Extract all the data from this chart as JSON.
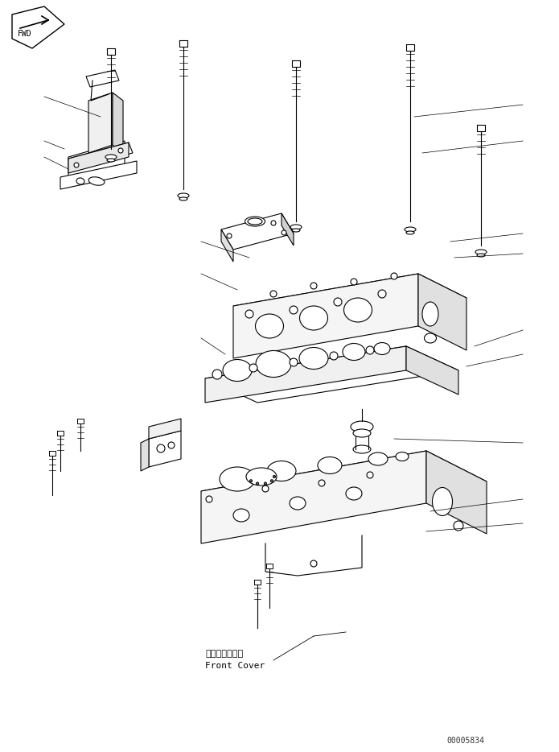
{
  "bg_color": "#ffffff",
  "line_color": "#000000",
  "fig_width": 6.95,
  "fig_height": 9.34,
  "dpi": 100,
  "part_number": "00005834",
  "label_front_cover_jp": "フロントカバー",
  "label_front_cover_en": "Front Cover"
}
